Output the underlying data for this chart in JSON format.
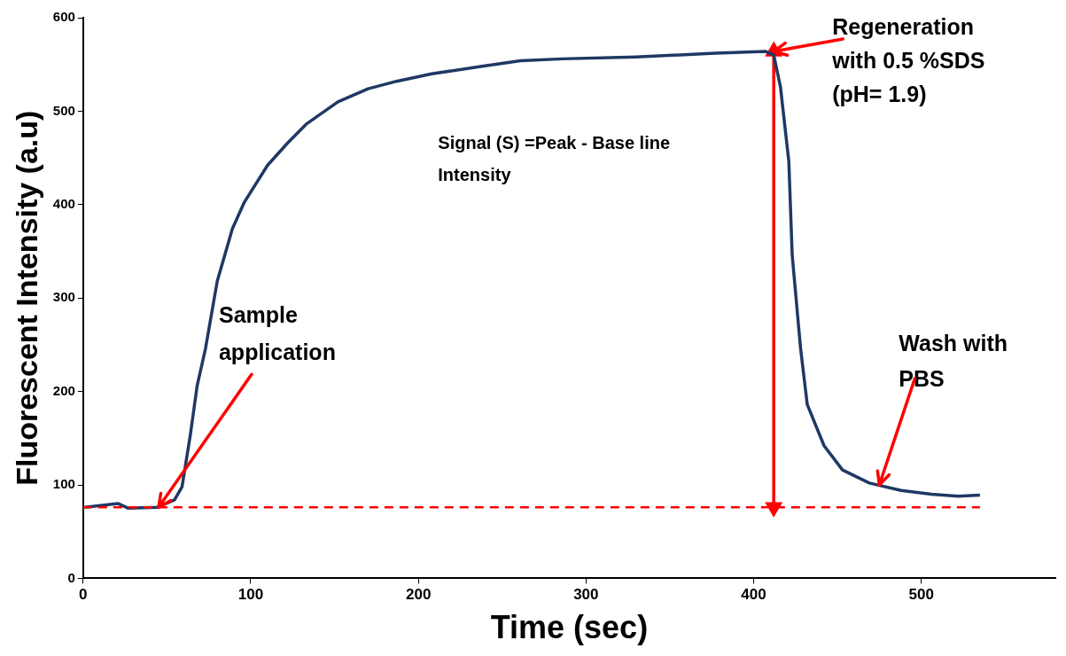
{
  "chart_data": {
    "type": "line",
    "xlabel": "Time (sec)",
    "ylabel": "Fluorescent Intensity (a.u)",
    "xlim": [
      0,
      580
    ],
    "xticks": [
      0,
      100,
      200,
      300,
      400,
      500
    ],
    "ylim": [
      0,
      600
    ],
    "yticks": [
      0,
      100,
      200,
      300,
      400,
      500,
      600
    ],
    "grid": false,
    "legend": false,
    "marker": "none",
    "line_style": "solid",
    "series": [
      {
        "color": "#1f3864",
        "x": [
          1,
          21,
          27,
          44,
          54.5,
          59,
          64,
          68,
          73,
          80,
          89,
          96,
          110,
          122,
          133,
          152,
          170,
          187,
          208,
          238,
          261,
          286,
          330,
          377,
          407,
          412,
          416,
          421,
          423,
          428,
          432,
          442,
          453,
          469,
          488,
          506,
          522,
          535
        ],
        "values": [
          76,
          80,
          75,
          76,
          84,
          98,
          154,
          206,
          246,
          318,
          374,
          402,
          442,
          466,
          486,
          510,
          524,
          532,
          540,
          548,
          554,
          556,
          558,
          562,
          564,
          560,
          526,
          446,
          346,
          246,
          186,
          142,
          116,
          102,
          94,
          90,
          88,
          89
        ]
      },
      {
        "type": "line",
        "color": "#ff0000",
        "marker": "triangle",
        "x": [
          412,
          412
        ],
        "values": [
          564,
          76
        ]
      }
    ],
    "ref_lines": [
      {
        "axis": "y",
        "value": 76,
        "color": "#ff0000",
        "line_style": "dashed"
      }
    ],
    "annotations": [
      {
        "text": "Sample application",
        "x": 45,
        "y": 76
      },
      "Signal (S) =Peak - Base line Intensity",
      {
        "text": "Regeneration with 0.5 %SDS (pH= 1.9)",
        "x": 412,
        "y": 564
      },
      {
        "text": "Wash with PBS",
        "x": 475,
        "y": 100
      }
    ]
  }
}
